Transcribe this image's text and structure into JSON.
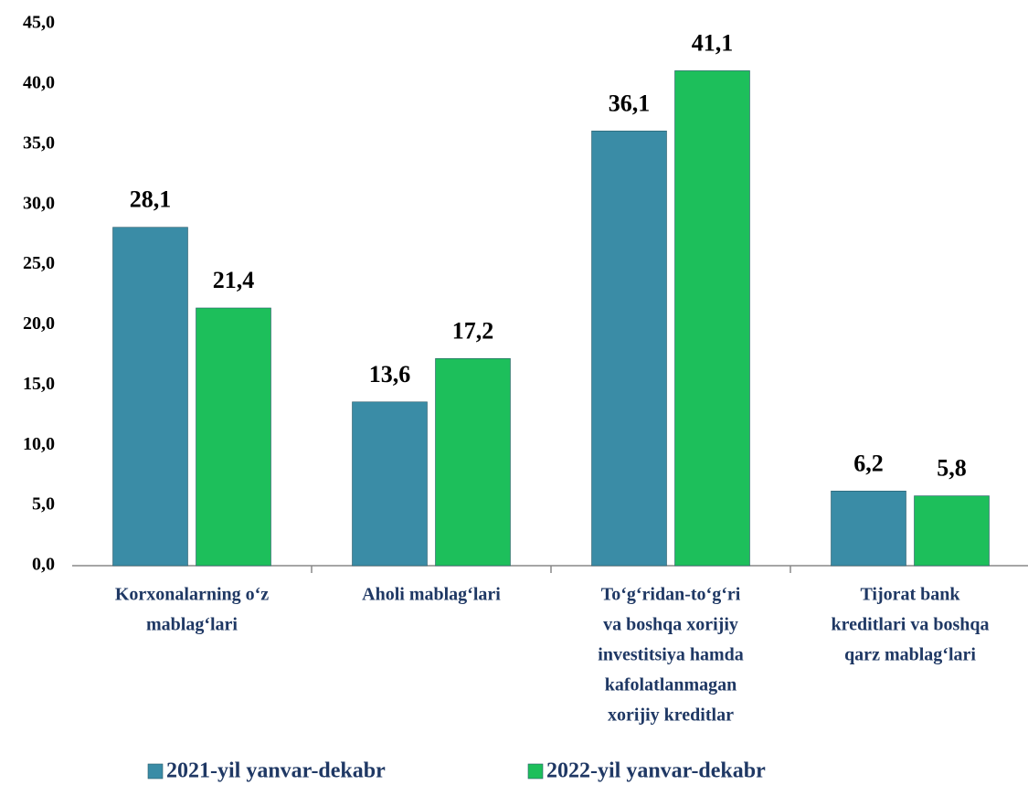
{
  "chart_data": {
    "type": "bar",
    "categories": [
      [
        "Korxonalarning o‘z",
        "mablag‘lari"
      ],
      [
        "Aholi mablag‘lari"
      ],
      [
        "To‘g‘ridan-to‘g‘ri",
        "va boshqa xorijiy",
        "investitsiya hamda",
        "kafolatlanmagan",
        "xorijiy kreditlar"
      ],
      [
        "Tijorat bank",
        "kreditlari va boshqa",
        "qarz mablag‘lari"
      ]
    ],
    "series": [
      {
        "name": "2021-yil yanvar-dekabr",
        "color": "#3a8ca6",
        "values": [
          28.1,
          13.6,
          36.1,
          6.2
        ],
        "value_labels": [
          "28,1",
          "13,6",
          "36,1",
          "6,2"
        ]
      },
      {
        "name": "2022-yil yanvar-dekabr",
        "color": "#1dbf5b",
        "values": [
          21.4,
          17.2,
          41.1,
          5.8
        ],
        "value_labels": [
          "21,4",
          "17,2",
          "41,1",
          "5,8"
        ]
      }
    ],
    "ylim": [
      0,
      45
    ],
    "yticks": [
      {
        "value": 0,
        "label": "0,0"
      },
      {
        "value": 5,
        "label": "5,0"
      },
      {
        "value": 10,
        "label": "10,0"
      },
      {
        "value": 15,
        "label": "15,0"
      },
      {
        "value": 20,
        "label": "20,0"
      },
      {
        "value": 25,
        "label": "25,0"
      },
      {
        "value": 30,
        "label": "30,0"
      },
      {
        "value": 35,
        "label": "35,0"
      },
      {
        "value": 40,
        "label": "40,0"
      },
      {
        "value": 45,
        "label": "45,0"
      }
    ],
    "grid": false
  }
}
